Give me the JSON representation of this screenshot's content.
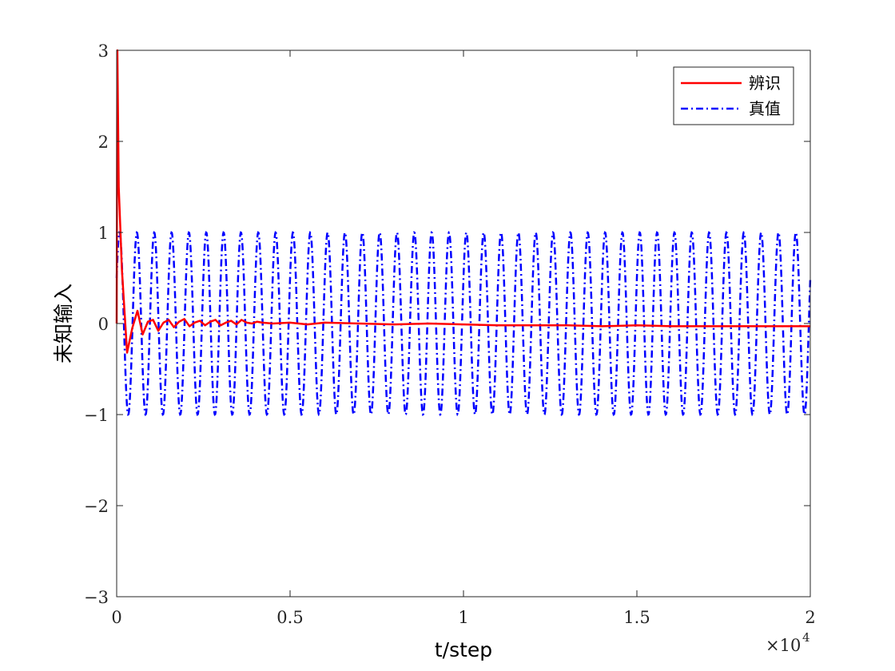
{
  "chart_data": {
    "type": "line",
    "xlabel": "t/step",
    "ylabel": "未知输入",
    "x_multiplier": "×10",
    "x_multiplier_exp": "4",
    "xlim": [
      0,
      20000
    ],
    "ylim": [
      -3,
      3
    ],
    "xticks": [
      0,
      5000,
      10000,
      15000,
      20000
    ],
    "xtick_labels": [
      "0",
      "0.5",
      "1",
      "1.5",
      "2"
    ],
    "yticks": [
      -3,
      -2,
      -1,
      0,
      1,
      2,
      3
    ],
    "ytick_labels": [
      "−3",
      "−2",
      "−1",
      "0",
      "1",
      "2",
      "3"
    ],
    "grid": false,
    "legend_position": "top-right",
    "series": [
      {
        "name": "辨识",
        "color": "#ff0000",
        "style": "solid",
        "x": [
          0,
          20,
          60,
          150,
          300,
          450,
          600,
          750,
          900,
          1050,
          1200,
          1350,
          1500,
          1650,
          1800,
          1950,
          2100,
          2250,
          2400,
          2550,
          2700,
          2850,
          3000,
          3150,
          3300,
          3450,
          3600,
          3750,
          3900,
          4050,
          4200,
          4500,
          5000,
          5500,
          6000,
          7000,
          8000,
          9000,
          10000,
          11000,
          12000,
          13000,
          14000,
          15000,
          16000,
          17000,
          18000,
          19000,
          20000
        ],
        "y": [
          0,
          3,
          1.5,
          0.6,
          -0.32,
          -0.05,
          0.14,
          -0.12,
          0.02,
          0.04,
          -0.08,
          0.01,
          0.04,
          -0.04,
          0.02,
          0.05,
          -0.03,
          0.01,
          0.03,
          -0.02,
          0.02,
          0.04,
          -0.02,
          0.01,
          0.03,
          -0.01,
          0.04,
          0.01,
          0.0,
          0.02,
          0.01,
          0.0,
          0.01,
          -0.01,
          0.01,
          0.0,
          -0.01,
          0.0,
          -0.01,
          -0.02,
          -0.02,
          -0.02,
          -0.03,
          -0.02,
          -0.03,
          -0.03,
          -0.03,
          -0.03,
          -0.03
        ]
      },
      {
        "name": "真值",
        "color": "#0000ff",
        "style": "dashdot",
        "function": "sin",
        "amplitude": 1,
        "period": 500,
        "phase_start": 0.5
      }
    ]
  }
}
